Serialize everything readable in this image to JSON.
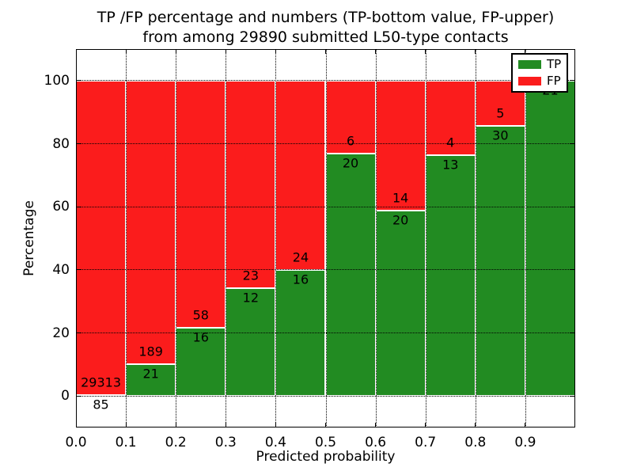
{
  "title": {
    "line1": "TP /FP percentage and numbers (TP-bottom value, FP-upper)",
    "line2": "from among 29890 submitted L50-type contacts"
  },
  "axes": {
    "xlabel": "Predicted probability",
    "ylabel": "Percentage"
  },
  "legend": {
    "position": "upper right",
    "entries": [
      {
        "label": "TP",
        "color": "#228b22"
      },
      {
        "label": "FP",
        "color": "#fb1c1c"
      }
    ]
  },
  "chart_data": {
    "type": "bar",
    "stacked": true,
    "percent_normalized": true,
    "title": "TP /FP percentage and numbers (TP-bottom value, FP-upper) from among 29890 submitted L50-type contacts",
    "xlabel": "Predicted probability",
    "ylabel": "Percentage",
    "xlim": [
      0,
      1
    ],
    "ylim": [
      -10,
      110
    ],
    "bar_width": 0.1,
    "grid": "dotted",
    "legend_position": "upper right",
    "total_contacts": 29890,
    "colors": {
      "tp": "#228b22",
      "fp": "#fb1c1c"
    },
    "xticks": [
      {
        "v": 0.0,
        "label": "0.0"
      },
      {
        "v": 0.1,
        "label": "0.1"
      },
      {
        "v": 0.2,
        "label": "0.2"
      },
      {
        "v": 0.3,
        "label": "0.3"
      },
      {
        "v": 0.4,
        "label": "0.4"
      },
      {
        "v": 0.5,
        "label": "0.5"
      },
      {
        "v": 0.6,
        "label": "0.6"
      },
      {
        "v": 0.7,
        "label": "0.7"
      },
      {
        "v": 0.8,
        "label": "0.8"
      },
      {
        "v": 0.9,
        "label": "0.9"
      }
    ],
    "yticks": [
      {
        "v": 0,
        "label": "0"
      },
      {
        "v": 20,
        "label": "20"
      },
      {
        "v": 40,
        "label": "40"
      },
      {
        "v": 60,
        "label": "60"
      },
      {
        "v": 80,
        "label": "80"
      },
      {
        "v": 100,
        "label": "100"
      }
    ],
    "series": [
      {
        "name": "TP",
        "color": "#228b22",
        "counts": [
          85,
          21,
          16,
          12,
          16,
          20,
          20,
          13,
          30,
          21
        ]
      },
      {
        "name": "FP",
        "color": "#fb1c1c",
        "counts": [
          29313,
          189,
          58,
          23,
          24,
          6,
          14,
          4,
          5,
          0
        ]
      }
    ],
    "bins": [
      {
        "range": [
          0.0,
          0.1
        ],
        "tp": 85,
        "fp": 29313,
        "tp_pct": 0.29
      },
      {
        "range": [
          0.1,
          0.2
        ],
        "tp": 21,
        "fp": 189,
        "tp_pct": 10.0
      },
      {
        "range": [
          0.2,
          0.3
        ],
        "tp": 16,
        "fp": 58,
        "tp_pct": 21.62
      },
      {
        "range": [
          0.3,
          0.4
        ],
        "tp": 12,
        "fp": 23,
        "tp_pct": 34.29
      },
      {
        "range": [
          0.4,
          0.5
        ],
        "tp": 16,
        "fp": 24,
        "tp_pct": 40.0
      },
      {
        "range": [
          0.5,
          0.6
        ],
        "tp": 20,
        "fp": 6,
        "tp_pct": 76.92
      },
      {
        "range": [
          0.6,
          0.7
        ],
        "tp": 20,
        "fp": 14,
        "tp_pct": 58.82
      },
      {
        "range": [
          0.7,
          0.8
        ],
        "tp": 13,
        "fp": 4,
        "tp_pct": 76.47
      },
      {
        "range": [
          0.8,
          0.9
        ],
        "tp": 30,
        "fp": 5,
        "tp_pct": 85.71
      },
      {
        "range": [
          0.9,
          1.0
        ],
        "tp": 21,
        "fp": 0,
        "tp_pct": 100.0
      }
    ]
  }
}
